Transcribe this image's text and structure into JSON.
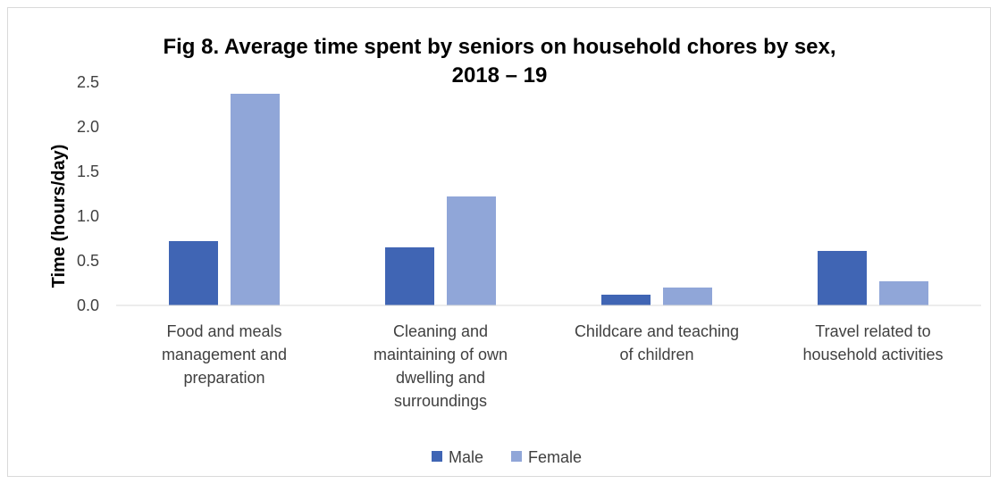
{
  "chart_data": {
    "type": "bar",
    "title_lines": [
      "Fig 8. Average time spent by seniors on household chores by sex,",
      "2018 – 19"
    ],
    "ylabel": "Time (hours/day)",
    "xlabel": "",
    "ylim": [
      0,
      2.5
    ],
    "yticks": [
      "0.0",
      "0.5",
      "1.0",
      "1.5",
      "2.0",
      "2.5"
    ],
    "grid": false,
    "legend_position": "bottom",
    "categories": [
      [
        "Food and meals",
        "management and",
        "preparation"
      ],
      [
        "Cleaning and",
        "maintaining of own",
        "dwelling and",
        "surroundings"
      ],
      [
        "Childcare and teaching",
        "of children"
      ],
      [
        "Travel related to",
        "household activities"
      ]
    ],
    "series": [
      {
        "name": "Male",
        "color": "#4065b4",
        "values": [
          0.72,
          0.65,
          0.12,
          0.61
        ]
      },
      {
        "name": "Female",
        "color": "#90a6d8",
        "values": [
          2.37,
          1.22,
          0.2,
          0.27
        ]
      }
    ]
  }
}
